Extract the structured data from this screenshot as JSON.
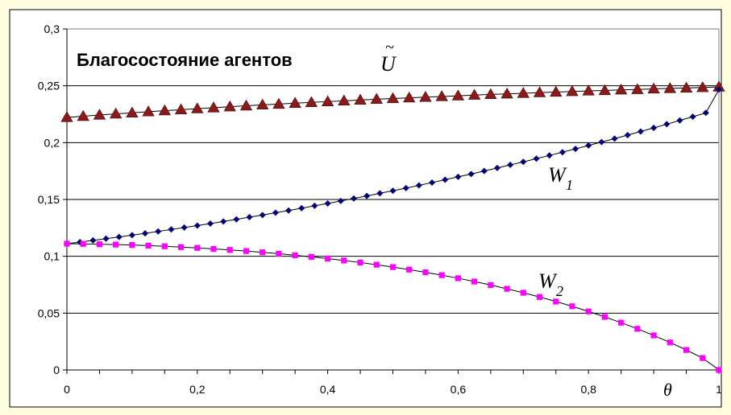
{
  "chart_data": {
    "type": "line",
    "title": "Благосостояние агентов",
    "xlabel": "θ",
    "ylabel": "",
    "xlim": [
      0,
      1
    ],
    "ylim": [
      0,
      0.3
    ],
    "grid": "horizontal",
    "legend": "none",
    "x_ticks": [
      "0",
      "0,2",
      "0,4",
      "0,6",
      "0,8",
      "1"
    ],
    "y_ticks": [
      "0",
      "0,05",
      "0,1",
      "0,15",
      "0,2",
      "0,25",
      "0,3"
    ],
    "series": [
      {
        "name": "Ũ",
        "marker": "triangle",
        "color": "#8b1a1a",
        "x": [
          0,
          0.025,
          0.05,
          0.075,
          0.1,
          0.125,
          0.15,
          0.175,
          0.2,
          0.225,
          0.25,
          0.275,
          0.3,
          0.325,
          0.35,
          0.375,
          0.4,
          0.425,
          0.45,
          0.475,
          0.5,
          0.525,
          0.55,
          0.575,
          0.6,
          0.625,
          0.65,
          0.675,
          0.7,
          0.725,
          0.75,
          0.775,
          0.8,
          0.825,
          0.85,
          0.875,
          0.9,
          0.925,
          0.95,
          0.975,
          1
        ],
        "values": [
          0.2222,
          0.2232,
          0.2243,
          0.2253,
          0.2262,
          0.2272,
          0.2281,
          0.229,
          0.2299,
          0.2307,
          0.2316,
          0.2324,
          0.2332,
          0.2339,
          0.2347,
          0.2354,
          0.2361,
          0.2368,
          0.2375,
          0.2382,
          0.2388,
          0.2394,
          0.24,
          0.2406,
          0.2412,
          0.2418,
          0.2424,
          0.2429,
          0.2434,
          0.244,
          0.2445,
          0.245,
          0.2455,
          0.2459,
          0.2464,
          0.2468,
          0.2473,
          0.2477,
          0.2481,
          0.2485,
          0.249
        ]
      },
      {
        "name": "W1",
        "marker": "diamond",
        "color": "#00007a",
        "x": [
          0,
          0.02,
          0.04,
          0.06,
          0.08,
          0.1,
          0.12,
          0.14,
          0.16,
          0.18,
          0.2,
          0.22,
          0.24,
          0.26,
          0.28,
          0.3,
          0.32,
          0.34,
          0.36,
          0.38,
          0.4,
          0.42,
          0.44,
          0.46,
          0.48,
          0.5,
          0.52,
          0.54,
          0.56,
          0.58,
          0.6,
          0.62,
          0.64,
          0.66,
          0.68,
          0.7,
          0.72,
          0.74,
          0.76,
          0.78,
          0.8,
          0.82,
          0.84,
          0.86,
          0.88,
          0.9,
          0.92,
          0.94,
          0.96,
          0.98,
          1
        ],
        "values": [
          0.1111,
          0.1125,
          0.114,
          0.1155,
          0.117,
          0.1186,
          0.1202,
          0.1219,
          0.1236,
          0.1253,
          0.127,
          0.1288,
          0.1306,
          0.1325,
          0.1344,
          0.1363,
          0.1383,
          0.1403,
          0.1423,
          0.1444,
          0.1465,
          0.1487,
          0.1509,
          0.1531,
          0.1554,
          0.1577,
          0.16,
          0.1624,
          0.1649,
          0.1673,
          0.1699,
          0.1724,
          0.175,
          0.1777,
          0.1804,
          0.1831,
          0.1859,
          0.1887,
          0.1916,
          0.1945,
          0.1975,
          0.2005,
          0.2035,
          0.2066,
          0.2098,
          0.213,
          0.2162,
          0.2195,
          0.2228,
          0.2262,
          0.2467
        ]
      },
      {
        "name": "W2",
        "marker": "square",
        "color": "#ff00ff",
        "x": [
          0,
          0.025,
          0.05,
          0.075,
          0.1,
          0.125,
          0.15,
          0.175,
          0.2,
          0.225,
          0.25,
          0.275,
          0.3,
          0.325,
          0.35,
          0.375,
          0.4,
          0.425,
          0.45,
          0.475,
          0.5,
          0.525,
          0.55,
          0.575,
          0.6,
          0.625,
          0.65,
          0.675,
          0.7,
          0.725,
          0.75,
          0.775,
          0.8,
          0.825,
          0.85,
          0.875,
          0.9,
          0.925,
          0.95,
          0.975,
          1
        ],
        "values": [
          0.1111,
          0.1109,
          0.1106,
          0.1103,
          0.1099,
          0.1094,
          0.1088,
          0.1081,
          0.1074,
          0.1065,
          0.1056,
          0.1046,
          0.1035,
          0.1023,
          0.1009,
          0.0995,
          0.098,
          0.0963,
          0.0945,
          0.0926,
          0.0905,
          0.0883,
          0.0859,
          0.0834,
          0.0807,
          0.0778,
          0.0747,
          0.0714,
          0.0679,
          0.0642,
          0.0602,
          0.056,
          0.0515,
          0.0467,
          0.0416,
          0.0362,
          0.0304,
          0.0242,
          0.0176,
          0.0105,
          0
        ]
      }
    ],
    "annotations": [
      {
        "id": "u",
        "base": "U",
        "accent": "~"
      },
      {
        "id": "w1",
        "base": "W",
        "sub": "1"
      },
      {
        "id": "w2",
        "base": "W",
        "sub": "2"
      }
    ]
  }
}
